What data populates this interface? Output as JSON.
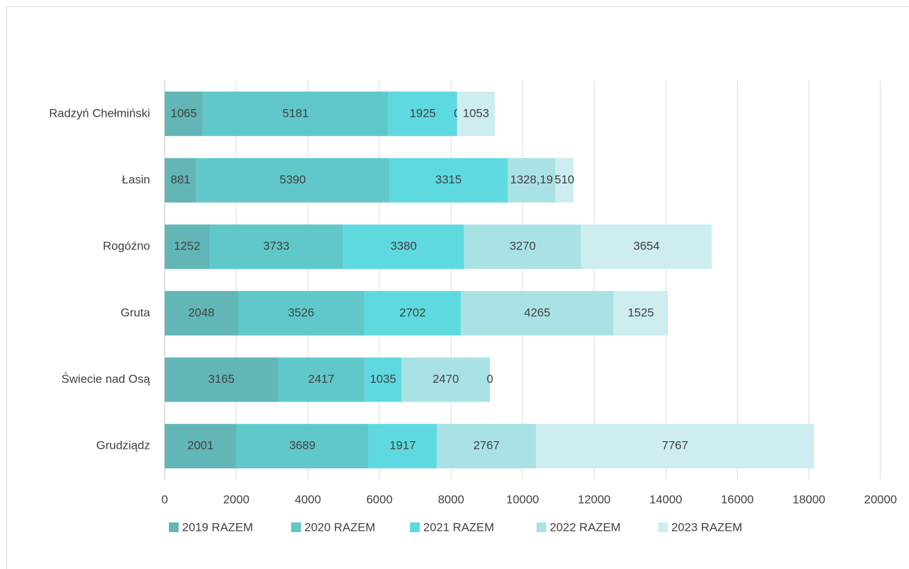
{
  "chart_data": {
    "type": "stacked_bar_horizontal",
    "categories": [
      "Radzyń Chełmiński",
      "Łasin",
      "Rogóźno",
      "Gruta",
      "Świecie nad Osą",
      "Grudziądz"
    ],
    "series": [
      {
        "name": "2019 RAZEM",
        "color": "#62b6b7",
        "values": [
          1065,
          881,
          1252,
          2048,
          3165,
          2001
        ]
      },
      {
        "name": "2020 RAZEM",
        "color": "#60c8c9",
        "values": [
          5181,
          5390,
          3733,
          3526,
          2417,
          3689
        ]
      },
      {
        "name": "2021 RAZEM",
        "color": "#5ed9df",
        "values": [
          1925,
          3315,
          3380,
          2702,
          1035,
          1917
        ]
      },
      {
        "name": "2022 RAZEM",
        "color": "#a9e2e5",
        "values": [
          0,
          1328.19,
          3270,
          4265,
          2470,
          2767
        ],
        "value_labels": [
          "0",
          "1328,19",
          "3270",
          "4265",
          "2470",
          "2767"
        ]
      },
      {
        "name": "2023 RAZEM",
        "color": "#cdedf0",
        "values": [
          1053,
          510,
          3654,
          1525,
          0,
          7767
        ]
      }
    ],
    "xlim": [
      0,
      20000
    ],
    "xticks": [
      0,
      2000,
      4000,
      6000,
      8000,
      10000,
      12000,
      14000,
      16000,
      18000,
      20000
    ],
    "grid": true,
    "legend": "bottom"
  }
}
